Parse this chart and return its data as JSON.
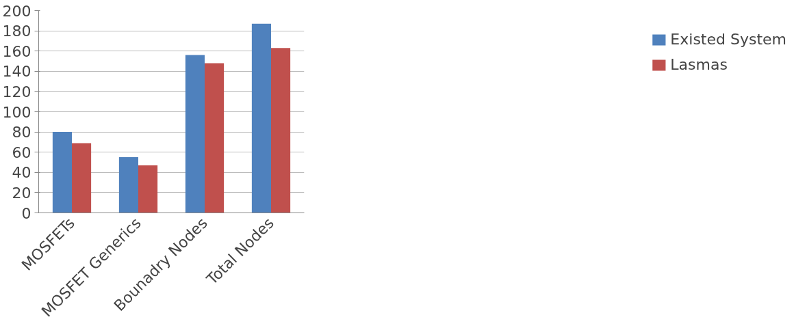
{
  "chart_data": {
    "type": "bar",
    "categories": [
      "MOSFETs",
      "MOSFET Generics",
      "Bounadry Nodes",
      "Total Nodes"
    ],
    "series": [
      {
        "name": "Existed System",
        "color": "#4f81bd",
        "values": [
          80,
          55,
          156,
          187
        ]
      },
      {
        "name": "Lasmas",
        "color": "#c0504d",
        "values": [
          69,
          47,
          148,
          163
        ]
      }
    ],
    "ylim": [
      0,
      200
    ],
    "yticks": [
      0,
      20,
      40,
      60,
      80,
      100,
      120,
      140,
      160,
      180,
      200
    ],
    "grid": "y",
    "legend": "right"
  }
}
